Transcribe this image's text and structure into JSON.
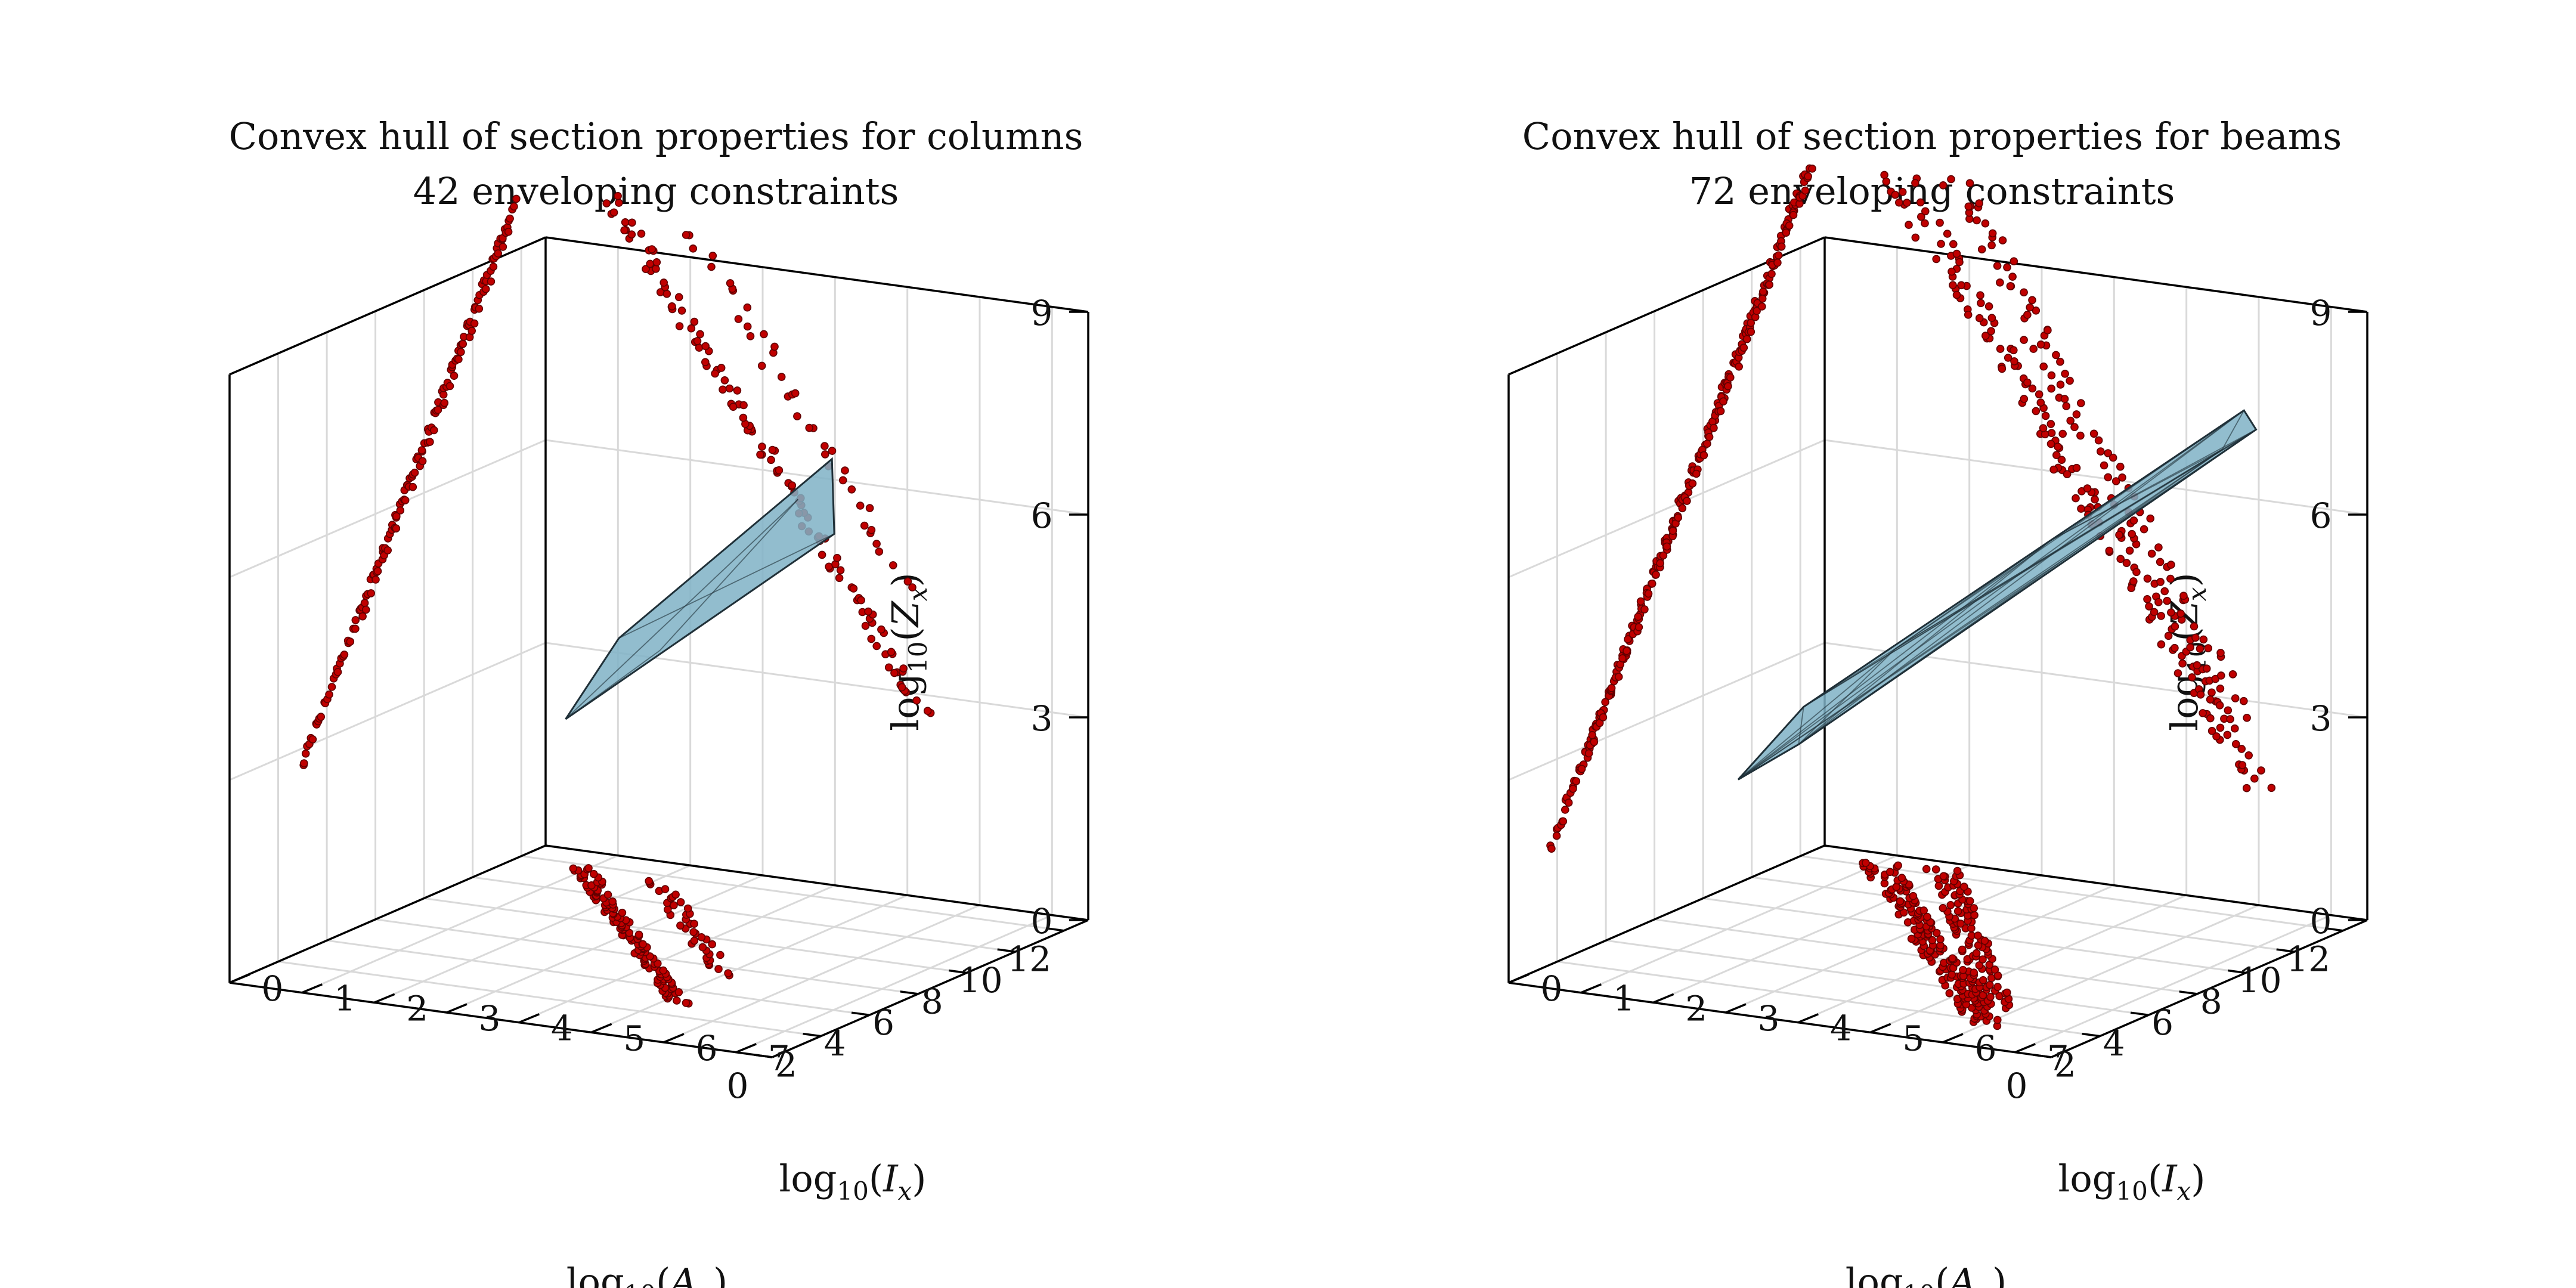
{
  "colors": {
    "point_fill": "#c00000",
    "point_stroke": "#600000",
    "hull_fill": "#7fb2c6",
    "hull_edge": "#203038",
    "grid": "#d9d9d9",
    "axis": "#000000"
  },
  "chart_data": [
    {
      "type": "scatter3d",
      "title": "Convex hull of section properties for columns",
      "subtitle": "42 enveloping constraints",
      "xlabel": {
        "base": "log",
        "sub": "10",
        "var": "I",
        "varsub": "x"
      },
      "ylabel": {
        "base": "log",
        "sub": "10",
        "var": "A",
        "varsub": "g"
      },
      "zlabel": {
        "base": "log",
        "sub": "10",
        "var": "Z",
        "varsub": "x"
      },
      "x_ticks": [
        "0",
        "2",
        "4",
        "6",
        "8",
        "10",
        "12"
      ],
      "y_ticks": [
        "0",
        "1",
        "2",
        "3",
        "4",
        "5",
        "6",
        "7"
      ],
      "z_ticks": [
        "0",
        "3",
        "6",
        "9"
      ],
      "xlim": [
        0,
        13
      ],
      "ylim": [
        0,
        7.5
      ],
      "zlim": [
        0,
        9
      ],
      "grid": true,
      "projection": "planes",
      "curves": [
        {
          "i0": 3.0,
          "i1": 11.8,
          "a0": 5.2,
          "a1": 0.9,
          "n": 120,
          "jitter": 0.12
        },
        {
          "i0": 5.5,
          "i1": 11.5,
          "a0": 5.0,
          "a1": 2.0,
          "n": 40,
          "jitter": 0.15
        }
      ],
      "hull": {
        "kind": "thin",
        "vertices": [
          [
            4.3,
            3.2,
            3.7
          ],
          [
            9.6,
            5.1,
            7.0
          ],
          [
            8.8,
            4.9,
            6.5
          ],
          [
            5.3,
            3.6,
            4.8
          ],
          [
            5.8,
            4.0,
            4.6
          ],
          [
            9.1,
            5.3,
            6.0
          ]
        ]
      }
    },
    {
      "type": "scatter3d",
      "title": "Convex hull of section properties for beams",
      "subtitle": "72 enveloping constraints",
      "xlabel": {
        "base": "log",
        "sub": "10",
        "var": "I",
        "varsub": "x"
      },
      "ylabel": {
        "base": "log",
        "sub": "10",
        "var": "A",
        "varsub": "g"
      },
      "zlabel": {
        "base": "log",
        "sub": "10",
        "var": "Z",
        "varsub": "x"
      },
      "x_ticks": [
        "0",
        "2",
        "4",
        "6",
        "8",
        "10",
        "12"
      ],
      "y_ticks": [
        "0",
        "1",
        "2",
        "3",
        "4",
        "5",
        "6",
        "7"
      ],
      "z_ticks": [
        "0",
        "3",
        "6",
        "9"
      ],
      "xlim": [
        0,
        13
      ],
      "ylim": [
        0,
        7.5
      ],
      "zlim": [
        0,
        9
      ],
      "grid": true,
      "projection": "planes",
      "curves": [
        {
          "i0": 1.8,
          "i1": 12.2,
          "a0": 6.0,
          "a1": 1.0,
          "n": 170,
          "jitter": 0.22
        },
        {
          "i0": 3.0,
          "i1": 12.5,
          "a0": 5.8,
          "a1": 1.8,
          "n": 110,
          "jitter": 0.2
        }
      ],
      "hull": {
        "kind": "thick",
        "vertices": [
          [
            2.3,
            2.4,
            3.0
          ],
          [
            11.5,
            6.3,
            7.6
          ],
          [
            10.9,
            6.2,
            7.1
          ],
          [
            3.8,
            2.8,
            3.9
          ],
          [
            5.5,
            3.5,
            4.6
          ],
          [
            11.7,
            6.4,
            7.3
          ],
          [
            8.0,
            4.8,
            6.0
          ],
          [
            3.0,
            3.0,
            3.5
          ]
        ]
      }
    }
  ]
}
